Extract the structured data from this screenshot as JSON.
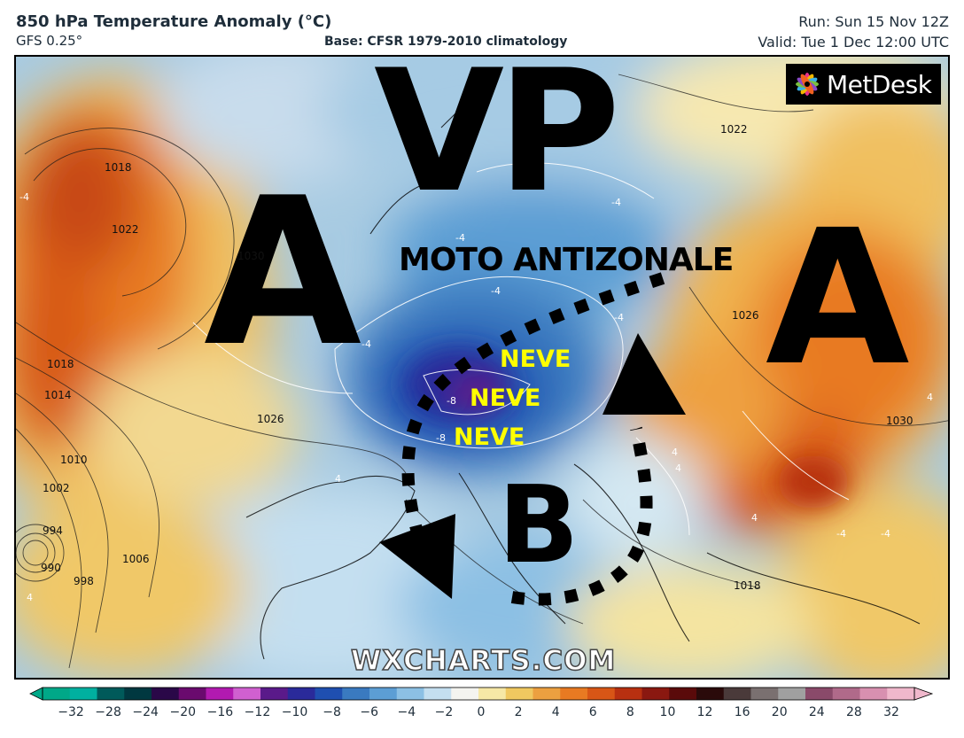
{
  "header": {
    "title": "850 hPa Temperature Anomaly (°C)",
    "model": "GFS 0.25°",
    "base": "Base: CFSR 1979-2010 climatology",
    "run": "Run: Sun 15 Nov 12Z",
    "valid": "Valid: Tue 1 Dec 12:00 UTC"
  },
  "logo": {
    "text": "MetDesk",
    "icon": "metdesk-flower-icon"
  },
  "annotations": {
    "vp": "VP",
    "a_left": "A",
    "a_right": "A",
    "b": "B",
    "moto": "MOTO ANTIZONALE",
    "neve": [
      "NEVE",
      "NEVE",
      "NEVE"
    ]
  },
  "watermark": "WXCHARTS.COM",
  "isobar_labels": [
    "1018",
    "1022",
    "1030",
    "1018",
    "1014",
    "1026",
    "1010",
    "1002",
    "994",
    "998",
    "1006",
    "990",
    "1022",
    "1026",
    "1030",
    "1018"
  ],
  "anomaly_labels": [
    "-4",
    "-4",
    "-4",
    "-4",
    "-4",
    "-4",
    "-8",
    "-8",
    "4",
    "4",
    "4",
    "4",
    "4",
    "4",
    "-4",
    "-4"
  ],
  "colorbar": {
    "ticks": [
      "−32",
      "−28",
      "−24",
      "−20",
      "−16",
      "−12",
      "−10",
      "−8",
      "−6",
      "−4",
      "−2",
      "0",
      "2",
      "4",
      "6",
      "8",
      "10",
      "12",
      "16",
      "20",
      "24",
      "28",
      "32"
    ],
    "colors": [
      "#00a888",
      "#00b0a0",
      "#005a5a",
      "#003840",
      "#2a0848",
      "#6a0a6e",
      "#b21ab0",
      "#d060d0",
      "#5a1a8a",
      "#2a2a9a",
      "#1f4fb0",
      "#3a7ac0",
      "#5c9ed4",
      "#8cc0e4",
      "#c4dff0",
      "#f4f4f0",
      "#f6e8a6",
      "#f0c860",
      "#eca040",
      "#e87a22",
      "#d85616",
      "#b83010",
      "#8a1810",
      "#5a0a0a",
      "#2a0a0a",
      "#4a3a3a",
      "#7a7070",
      "#a0a0a0",
      "#8a4a6a",
      "#b06a8a",
      "#d890b0",
      "#f0b8cc"
    ]
  }
}
